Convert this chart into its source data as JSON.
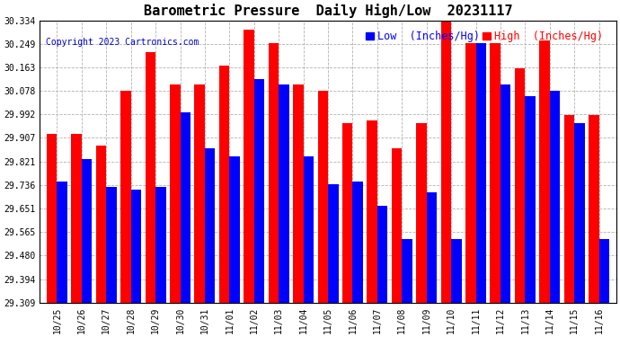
{
  "title": "Barometric Pressure  Daily High/Low  20231117",
  "copyright": "Copyright 2023 Cartronics.com",
  "legend_low": "Low  (Inches/Hg)",
  "legend_high": "High  (Inches/Hg)",
  "categories": [
    "10/25",
    "10/26",
    "10/27",
    "10/28",
    "10/29",
    "10/30",
    "10/31",
    "11/01",
    "11/02",
    "11/03",
    "11/04",
    "11/05",
    "11/06",
    "11/07",
    "11/08",
    "11/09",
    "11/10",
    "11/11",
    "11/12",
    "11/13",
    "11/14",
    "11/15",
    "11/16"
  ],
  "high_values": [
    29.92,
    29.92,
    29.88,
    30.08,
    30.22,
    30.1,
    30.1,
    30.17,
    30.3,
    30.25,
    30.1,
    30.08,
    29.96,
    29.97,
    29.87,
    29.96,
    30.34,
    30.25,
    30.25,
    30.16,
    30.26,
    29.99,
    29.99
  ],
  "low_values": [
    29.75,
    29.83,
    29.73,
    29.72,
    29.73,
    30.0,
    29.87,
    29.84,
    30.12,
    30.1,
    29.84,
    29.74,
    29.75,
    29.66,
    29.54,
    29.71,
    29.54,
    30.25,
    30.1,
    30.06,
    30.08,
    29.96,
    29.54
  ],
  "ymin": 29.309,
  "ymax": 30.334,
  "yticks": [
    29.309,
    29.394,
    29.48,
    29.565,
    29.651,
    29.736,
    29.821,
    29.907,
    29.992,
    30.078,
    30.163,
    30.249,
    30.334
  ],
  "bar_width": 0.42,
  "high_color": "#ff0000",
  "low_color": "#0000ff",
  "background_color": "#ffffff",
  "grid_color": "#aaaaaa",
  "title_fontsize": 11,
  "tick_fontsize": 7,
  "legend_fontsize": 8.5,
  "copyright_color": "#0000cc",
  "copyright_fontsize": 7
}
